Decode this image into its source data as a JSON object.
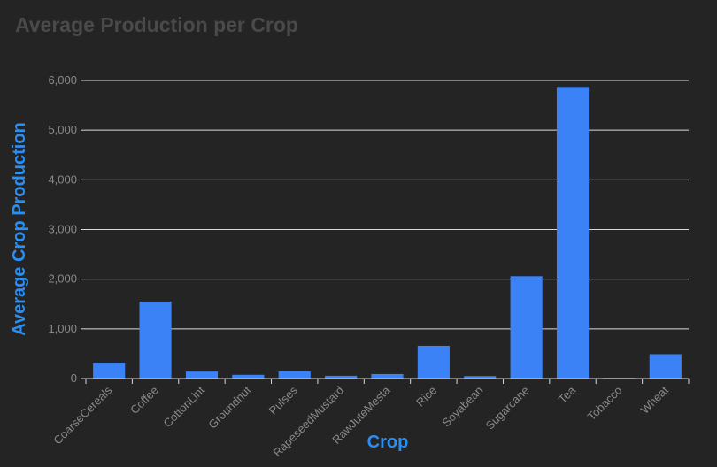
{
  "title": "Average Production per Crop",
  "colors": {
    "bar": "#3b82f6",
    "axis_title": "#2b8ef2",
    "grid": "#d9d9d9",
    "tick": "#8a8a8a",
    "background": "#242424"
  },
  "chart_data": {
    "type": "bar",
    "title": "Average Production per Crop",
    "xlabel": "Crop",
    "ylabel": "Average Crop Production",
    "categories": [
      "CoarseCereals",
      "Coffee",
      "CottonLint",
      "Groundnut",
      "Pulses",
      "RapeseedMustard",
      "RawJuteMesta",
      "Rice",
      "Soyabean",
      "Sugarcane",
      "Tea",
      "Tobacco",
      "Wheat"
    ],
    "values": [
      320,
      1550,
      140,
      75,
      145,
      55,
      90,
      660,
      50,
      2060,
      5870,
      15,
      490
    ],
    "ylim": [
      0,
      6000
    ],
    "yticks": [
      0,
      1000,
      2000,
      3000,
      4000,
      5000,
      6000
    ],
    "ytick_labels": [
      "0",
      "1,000",
      "2,000",
      "3,000",
      "4,000",
      "5,000",
      "6,000"
    ],
    "grid": true,
    "legend": false
  }
}
